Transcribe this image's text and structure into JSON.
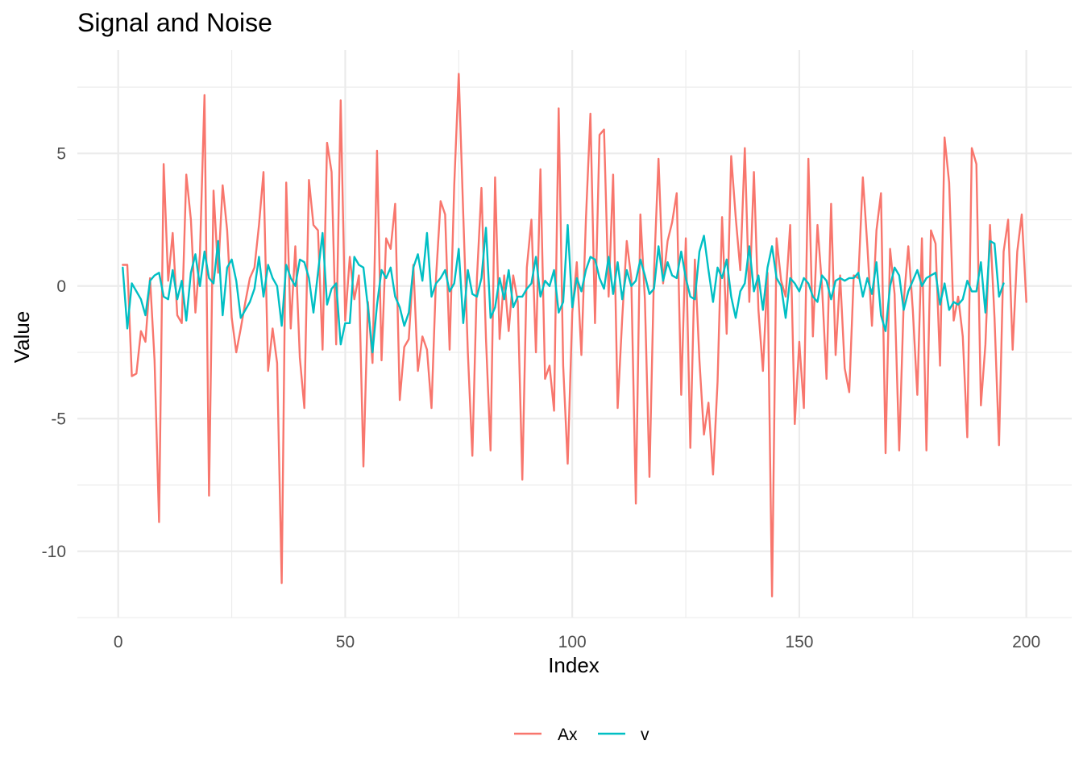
{
  "chart_data": {
    "type": "line",
    "title": "Signal and Noise",
    "xlabel": "Index",
    "ylabel": "Value",
    "xlim": [
      -9,
      210
    ],
    "ylim": [
      -12.5,
      8.9
    ],
    "x_ticks": [
      0,
      50,
      100,
      150,
      200
    ],
    "x_tick_labels": [
      "0",
      "50",
      "100",
      "150",
      "200"
    ],
    "y_ticks": [
      -10,
      -5,
      0,
      5
    ],
    "y_tick_labels": [
      "-10",
      "-5",
      "0",
      "5"
    ],
    "grid": true,
    "legend": {
      "position": "bottom",
      "entries": [
        "Ax",
        "v"
      ]
    },
    "series": [
      {
        "name": "Ax",
        "color": "#F8766D",
        "x_start": 1,
        "values": [
          0.8,
          0.8,
          -3.4,
          -3.3,
          -1.7,
          -2.1,
          0.3,
          -2.8,
          -8.9,
          4.6,
          0.2,
          2.0,
          -1.1,
          -1.4,
          4.2,
          2.5,
          -1.0,
          1.2,
          7.2,
          -7.9,
          3.6,
          0.5,
          3.8,
          2.1,
          -1.2,
          -2.5,
          -1.6,
          -0.6,
          0.3,
          0.7,
          2.3,
          4.3,
          -3.2,
          -1.6,
          -2.9,
          -11.2,
          3.9,
          -1.6,
          1.5,
          -2.7,
          -4.6,
          4.0,
          2.3,
          2.1,
          -2.4,
          5.4,
          4.3,
          -2.2,
          7.0,
          -1.3,
          1.1,
          -0.5,
          0.4,
          -6.8,
          -0.6,
          -2.9,
          5.1,
          -2.8,
          1.8,
          1.4,
          3.1,
          -4.3,
          -2.3,
          -2.0,
          0.8,
          -3.2,
          -1.9,
          -2.4,
          -4.6,
          0.3,
          3.2,
          2.7,
          -2.4,
          3.8,
          8.0,
          2.7,
          -2.5,
          -6.4,
          0.3,
          3.7,
          -2.0,
          -6.2,
          4.1,
          -2.0,
          0.4,
          -1.7,
          0.4,
          -0.6,
          -7.3,
          0.7,
          2.5,
          -2.5,
          4.4,
          -3.5,
          -3.0,
          -4.7,
          6.7,
          -3.0,
          -6.7,
          -1.0,
          0.9,
          -2.6,
          2.5,
          6.5,
          -1.4,
          5.7,
          5.9,
          -0.4,
          4.2,
          -4.6,
          -1.2,
          1.7,
          0.3,
          -8.2,
          2.7,
          -0.5,
          -7.2,
          0.5,
          4.8,
          0.1,
          1.7,
          2.4,
          3.5,
          -4.1,
          1.8,
          -6.1,
          1.0,
          -2.8,
          -5.6,
          -4.4,
          -7.1,
          -3.6,
          2.6,
          -1.8,
          4.9,
          2.6,
          0.6,
          5.2,
          -0.6,
          4.3,
          -0.9,
          -3.2,
          0.5,
          -11.7,
          1.8,
          0.2,
          -0.4,
          2.3,
          -5.2,
          -2.1,
          -4.6,
          4.8,
          -1.9,
          2.3,
          0.0,
          -3.5,
          3.1,
          -2.6,
          0.4,
          -3.1,
          -4.0,
          0.4,
          0.3,
          4.1,
          1.5,
          -1.5,
          2.1,
          3.5,
          -6.3,
          1.4,
          -0.3,
          -6.2,
          -0.6,
          1.5,
          -0.9,
          -4.1,
          1.8,
          -6.2,
          2.1,
          1.6,
          -3.0,
          5.6,
          3.9,
          -1.3,
          -0.4,
          -1.9,
          -5.7,
          5.2,
          4.6,
          -4.5,
          -2.2,
          2.3,
          -1.2,
          -6.0,
          1.3,
          2.5,
          -2.4,
          1.3,
          2.7,
          -0.6
        ]
      },
      {
        "name": "v",
        "color": "#00BFC4",
        "x_start": 1,
        "values": [
          0.7,
          -1.6,
          0.1,
          -0.2,
          -0.5,
          -1.1,
          0.2,
          0.4,
          0.5,
          -0.4,
          -0.5,
          0.6,
          -0.5,
          0.2,
          -1.3,
          0.5,
          1.2,
          0.0,
          1.3,
          0.3,
          0.1,
          1.7,
          -1.1,
          0.7,
          1.0,
          0.2,
          -1.2,
          -0.9,
          -0.6,
          -0.1,
          1.1,
          -0.4,
          0.8,
          0.3,
          0.0,
          -1.5,
          0.8,
          0.3,
          0.0,
          1.0,
          0.9,
          0.3,
          -1.0,
          0.5,
          2.0,
          -0.7,
          -0.1,
          0.1,
          -2.2,
          -1.4,
          -1.4,
          1.1,
          0.8,
          0.7,
          -0.8,
          -2.5,
          -0.7,
          0.6,
          0.3,
          0.7,
          -0.4,
          -0.8,
          -1.5,
          -1.0,
          0.7,
          1.2,
          0.2,
          2.0,
          -0.4,
          0.1,
          0.3,
          0.6,
          -0.2,
          0.1,
          1.4,
          -1.4,
          0.6,
          -0.3,
          -0.4,
          0.3,
          2.2,
          -1.2,
          -0.8,
          0.3,
          -0.5,
          0.6,
          -0.8,
          -0.4,
          -0.4,
          -0.1,
          0.1,
          1.1,
          -0.4,
          0.2,
          0.0,
          0.6,
          -1.0,
          -0.6,
          2.3,
          -0.8,
          0.3,
          -0.2,
          0.6,
          1.1,
          1.0,
          0.3,
          -0.1,
          1.1,
          -0.3,
          0.9,
          -0.5,
          0.6,
          0.0,
          0.2,
          1.0,
          0.4,
          -0.3,
          -0.1,
          1.5,
          0.2,
          0.9,
          0.4,
          0.3,
          1.3,
          0.3,
          -0.4,
          -0.5,
          1.3,
          1.9,
          0.6,
          -0.6,
          0.7,
          0.3,
          1.0,
          -0.4,
          -1.2,
          -0.2,
          0.1,
          1.5,
          -0.2,
          0.4,
          -0.9,
          0.7,
          1.5,
          0.3,
          0.0,
          -1.2,
          0.3,
          0.1,
          -0.2,
          0.3,
          0.1,
          -0.4,
          -0.6,
          0.4,
          0.2,
          -0.5,
          0.2,
          0.3,
          0.2,
          0.3,
          0.3,
          0.5,
          -0.4,
          0.3,
          -0.3,
          0.9,
          -1.1,
          -1.7,
          0.0,
          0.7,
          0.4,
          -0.9,
          -0.2,
          0.2,
          0.6,
          0.0,
          0.3,
          0.4,
          0.5,
          -0.7,
          0.1,
          -0.9,
          -0.6,
          -0.7,
          -0.5,
          0.2,
          -0.2,
          -0.2,
          0.9,
          -1.0,
          1.7,
          1.6,
          -0.4,
          0.1
        ]
      }
    ]
  }
}
